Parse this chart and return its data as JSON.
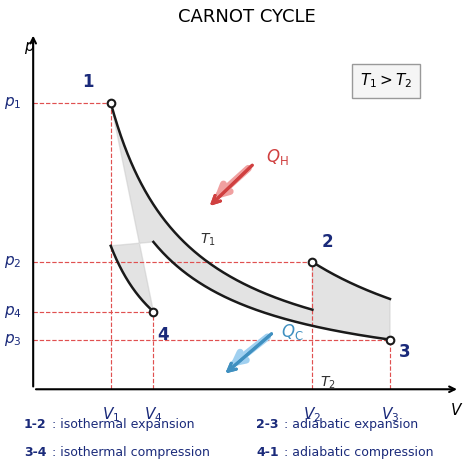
{
  "title": "CARNOT CYCLE",
  "title_fontsize": 13,
  "title_color": "#000000",
  "background_color": "#ffffff",
  "points": {
    "1": {
      "V": 1.0,
      "p": 4.5
    },
    "2": {
      "V": 3.6,
      "p": 2.0
    },
    "3": {
      "V": 4.6,
      "p": 0.78
    },
    "4": {
      "V": 1.55,
      "p": 1.22
    }
  },
  "curve_color": "#1a1a1a",
  "curve_linewidth": 1.8,
  "fill_color": "#c8c8c8",
  "fill_alpha": 0.5,
  "dashed_color": "#e05050",
  "dashed_linewidth": 0.85,
  "point_marker_color": "#ffffff",
  "point_marker_edgecolor": "#1a1a1a",
  "point_marker_size": 5.5,
  "label_color_dark": "#1a2a7a",
  "label_fontsize": 11,
  "axis_label_fontsize": 11,
  "annotation_color_hot": "#d04040",
  "annotation_color_cold": "#4090c0",
  "legend_box_color": "#f5f5f5",
  "legend_box_edgecolor": "#999999",
  "xlim": [
    0.0,
    5.5
  ],
  "ylim": [
    0.0,
    5.6
  ],
  "xlabel": "V",
  "ylabel": "p",
  "gamma": 1.4
}
